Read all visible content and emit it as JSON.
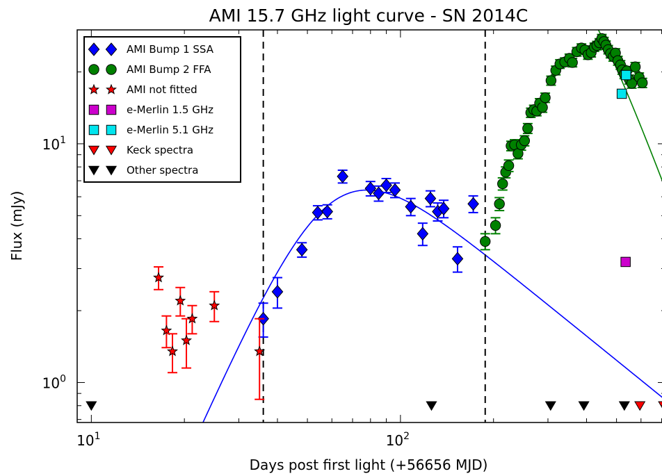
{
  "chart_data": {
    "type": "scatter",
    "title": "AMI 15.7 GHz light curve - SN 2014C",
    "xlabel": "Days post first light (+56656 MJD)",
    "ylabel": "Flux (mJy)",
    "x_scale": "log",
    "y_scale": "log",
    "xlim": [
      9.0,
      720
    ],
    "ylim": [
      0.68,
      30
    ],
    "x_ticks": [
      {
        "value": 10,
        "base": "10",
        "exp": "1"
      },
      {
        "value": 100,
        "base": "10",
        "exp": "2"
      }
    ],
    "y_ticks": [
      {
        "value": 1,
        "base": "10",
        "exp": "0"
      },
      {
        "value": 10,
        "base": "10",
        "exp": "1"
      }
    ],
    "vlines": [
      36,
      188
    ],
    "legend_position": "top-left",
    "series": [
      {
        "name": "AMI Bump 1 SSA",
        "marker": "diamond",
        "color": "#0000ff",
        "points": [
          [
            36,
            1.85,
            0.3
          ],
          [
            40,
            2.4,
            0.35
          ],
          [
            48,
            3.6,
            0.25
          ],
          [
            54,
            5.15,
            0.35
          ],
          [
            58,
            5.2,
            0.35
          ],
          [
            65,
            7.3,
            0.45
          ],
          [
            80,
            6.5,
            0.45
          ],
          [
            85,
            6.2,
            0.45
          ],
          [
            90,
            6.7,
            0.45
          ],
          [
            96,
            6.4,
            0.45
          ],
          [
            108,
            5.45,
            0.45
          ],
          [
            118,
            4.2,
            0.45
          ],
          [
            125,
            5.9,
            0.45
          ],
          [
            132,
            5.2,
            0.45
          ],
          [
            138,
            5.35,
            0.45
          ],
          [
            153,
            3.3,
            0.4
          ],
          [
            172,
            5.6,
            0.45
          ]
        ]
      },
      {
        "name": "AMI Bump 2 FFA",
        "marker": "circle",
        "color": "#008000",
        "points": [
          [
            188,
            3.9,
            0.3
          ],
          [
            203,
            4.55,
            0.35
          ],
          [
            209,
            5.6,
            0.35
          ],
          [
            214,
            6.8,
            0.4
          ],
          [
            219,
            7.6,
            0.4
          ],
          [
            224,
            8.1,
            0.45
          ],
          [
            228,
            9.8,
            0.45
          ],
          [
            234,
            9.9,
            0.5
          ],
          [
            240,
            9.1,
            0.45
          ],
          [
            246,
            9.9,
            0.5
          ],
          [
            252,
            10.3,
            0.5
          ],
          [
            258,
            11.6,
            0.55
          ],
          [
            264,
            13.5,
            0.6
          ],
          [
            270,
            13.9,
            0.6
          ],
          [
            276,
            13.7,
            0.6
          ],
          [
            282,
            14.8,
            0.65
          ],
          [
            288,
            14.2,
            0.65
          ],
          [
            294,
            15.6,
            0.7
          ],
          [
            307,
            18.4,
            0.8
          ],
          [
            318,
            20.3,
            0.85
          ],
          [
            328,
            21.6,
            0.9
          ],
          [
            340,
            22.0,
            0.9
          ],
          [
            352,
            22.8,
            0.95
          ],
          [
            360,
            21.9,
            0.9
          ],
          [
            372,
            24.3,
            1.0
          ],
          [
            385,
            25.2,
            1.0
          ],
          [
            395,
            24.7,
            1.0
          ],
          [
            404,
            23.6,
            1.0
          ],
          [
            414,
            24.1,
            1.0
          ],
          [
            424,
            25.4,
            1.0
          ],
          [
            432,
            25.8,
            1.05
          ],
          [
            440,
            26.5,
            1.05
          ],
          [
            448,
            27.6,
            1.1
          ],
          [
            455,
            26.8,
            1.1
          ],
          [
            462,
            25.9,
            1.05
          ],
          [
            470,
            24.8,
            1.0
          ],
          [
            478,
            23.9,
            1.0
          ],
          [
            488,
            23.2,
            1.0
          ],
          [
            496,
            24.0,
            1.0
          ],
          [
            505,
            22.3,
            0.95
          ],
          [
            515,
            21.4,
            0.9
          ],
          [
            522,
            20.4,
            0.85
          ],
          [
            530,
            19.6,
            0.85
          ],
          [
            540,
            20.2,
            0.85
          ],
          [
            550,
            18.6,
            0.8
          ],
          [
            560,
            17.9,
            0.8
          ],
          [
            575,
            21.0,
            0.9
          ],
          [
            592,
            19.0,
            0.8
          ],
          [
            606,
            18.0,
            0.8
          ]
        ]
      },
      {
        "name": "AMI not fitted",
        "marker": "star",
        "color": "#ff0000",
        "points": [
          [
            16.5,
            2.75,
            0.3
          ],
          [
            17.5,
            1.65,
            0.25
          ],
          [
            18.3,
            1.35,
            0.25
          ],
          [
            19.4,
            2.2,
            0.3
          ],
          [
            20.3,
            1.5,
            0.35
          ],
          [
            21.2,
            1.85,
            0.25
          ],
          [
            25.0,
            2.1,
            0.3
          ],
          [
            35.0,
            1.35,
            0.5
          ]
        ]
      },
      {
        "name": "e-Merlin 1.5 GHz",
        "marker": "square",
        "color": "#cc00cc",
        "points": [
          [
            535,
            3.2,
            0
          ]
        ]
      },
      {
        "name": "e-Merlin 5.1 GHz",
        "marker": "square",
        "color": "#00e5ee",
        "points": [
          [
            520,
            16.2,
            0
          ],
          [
            537,
            19.4,
            0
          ]
        ]
      },
      {
        "name": "Keck spectra",
        "marker": "triangle-down",
        "color": "#ff0000",
        "points": [
          [
            595,
            0.8,
            0
          ],
          [
            710,
            0.8,
            0
          ]
        ]
      },
      {
        "name": "Other spectra",
        "marker": "triangle-down",
        "color": "#000000",
        "points": [
          [
            10,
            0.8,
            0
          ],
          [
            126,
            0.8,
            0
          ],
          [
            306,
            0.8,
            0
          ],
          [
            392,
            0.8,
            0
          ],
          [
            530,
            0.8,
            0
          ]
        ]
      }
    ],
    "models": [
      {
        "label": "SSA",
        "color": "#0000ff",
        "peak_x": 78,
        "peak_y": 6.4,
        "rise_index": 2.9,
        "decay_index": -1.05
      },
      {
        "label": "FFA",
        "color": "#008000",
        "peak_x": 452,
        "peak_y": 24.6,
        "onset_x": 150
      }
    ]
  }
}
